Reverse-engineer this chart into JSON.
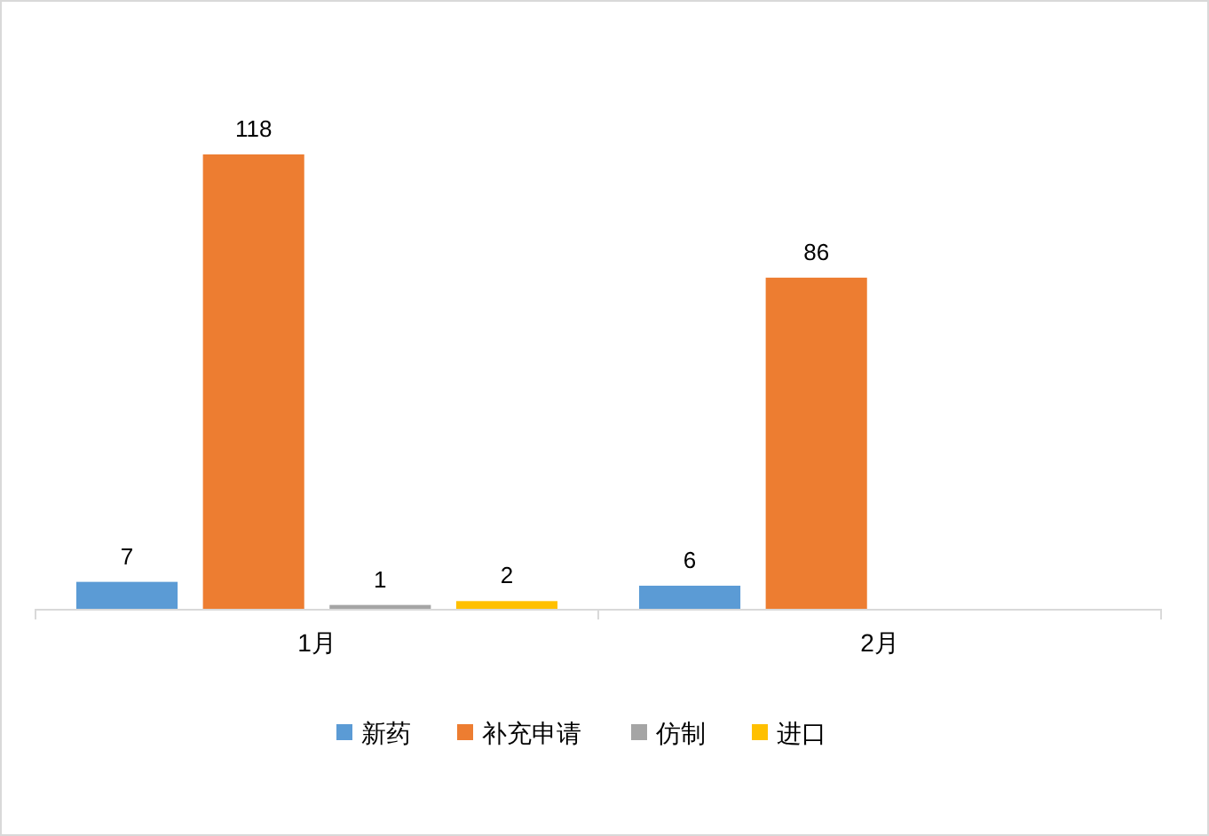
{
  "chart_data": {
    "type": "bar",
    "categories": [
      "1月",
      "2月"
    ],
    "series": [
      {
        "name": "新药",
        "color": "#5b9bd5",
        "values": [
          7,
          6
        ]
      },
      {
        "name": "补充申请",
        "color": "#ed7d31",
        "values": [
          118,
          86
        ]
      },
      {
        "name": "仿制",
        "color": "#a5a5a5",
        "values": [
          1,
          null
        ]
      },
      {
        "name": "进口",
        "color": "#ffc000",
        "values": [
          2,
          null
        ]
      }
    ],
    "data_labels": true,
    "legend": "bottom"
  }
}
